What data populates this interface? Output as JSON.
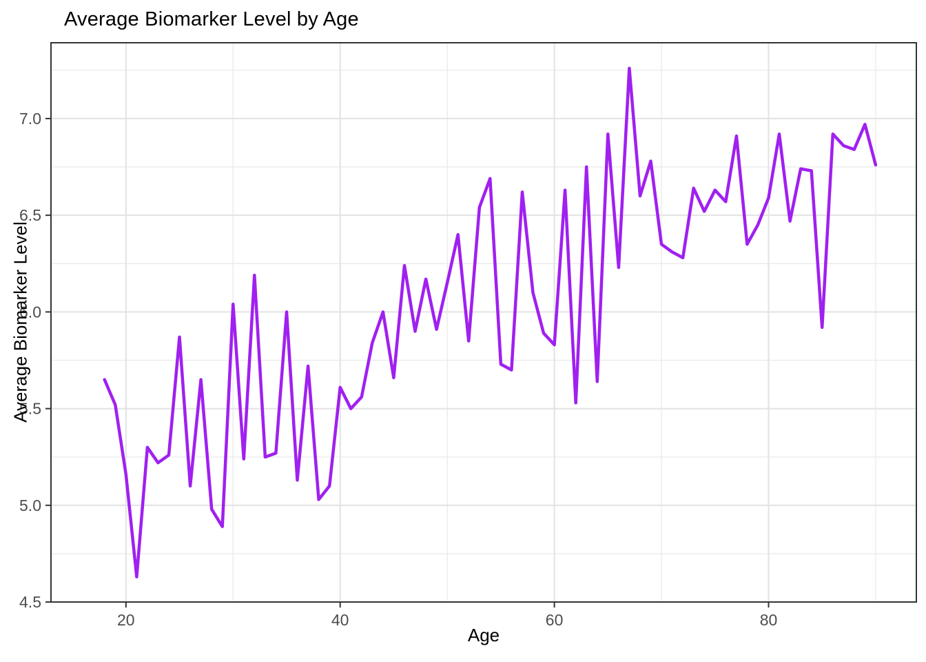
{
  "chart_data": {
    "type": "line",
    "title": "Average Biomarker Level by Age",
    "xlabel": "Age",
    "ylabel": "Average Biomarker Level",
    "xlim": [
      13.0,
      93.8
    ],
    "ylim": [
      4.5,
      7.392
    ],
    "x_major_ticks": [
      20,
      40,
      60,
      80
    ],
    "x_minor_ticks": [
      30,
      50,
      70,
      90
    ],
    "y_major_ticks": [
      4.5,
      5.0,
      5.5,
      6.0,
      6.5,
      7.0
    ],
    "y_minor_ticks": [
      4.75,
      5.25,
      5.75,
      6.25,
      6.75,
      7.25
    ],
    "x_tick_labels": [
      "20",
      "40",
      "60",
      "80"
    ],
    "y_tick_labels": [
      "4.5",
      "5.0",
      "5.5",
      "6.0",
      "6.5",
      "7.0"
    ],
    "grid": "on",
    "legend": "none",
    "line_color": "#A020F0",
    "panel_border_color": "#333333",
    "tick_label_color": "#4D4D4D",
    "major_grid_color": "#E2E2E2",
    "minor_grid_color": "#EBEBEB",
    "series": [
      {
        "name": "Average Biomarker Level",
        "points": [
          [
            18,
            5.65
          ],
          [
            19,
            5.52
          ],
          [
            20,
            5.16
          ],
          [
            21,
            4.63
          ],
          [
            22,
            5.3
          ],
          [
            23,
            5.22
          ],
          [
            24,
            5.26
          ],
          [
            25,
            5.87
          ],
          [
            26,
            5.1
          ],
          [
            27,
            5.65
          ],
          [
            28,
            4.98
          ],
          [
            29,
            4.89
          ],
          [
            30,
            6.04
          ],
          [
            31,
            5.24
          ],
          [
            32,
            6.19
          ],
          [
            33,
            5.25
          ],
          [
            34,
            5.27
          ],
          [
            35,
            6.0
          ],
          [
            36,
            5.13
          ],
          [
            37,
            5.72
          ],
          [
            38,
            5.03
          ],
          [
            39,
            5.1
          ],
          [
            40,
            5.61
          ],
          [
            41,
            5.5
          ],
          [
            42,
            5.56
          ],
          [
            43,
            5.84
          ],
          [
            44,
            6.0
          ],
          [
            45,
            5.66
          ],
          [
            46,
            6.24
          ],
          [
            47,
            5.9
          ],
          [
            48,
            6.17
          ],
          [
            49,
            5.91
          ],
          [
            50,
            6.15
          ],
          [
            51,
            6.4
          ],
          [
            52,
            5.85
          ],
          [
            53,
            6.54
          ],
          [
            54,
            6.69
          ],
          [
            55,
            5.73
          ],
          [
            56,
            5.7
          ],
          [
            57,
            6.62
          ],
          [
            58,
            6.1
          ],
          [
            59,
            5.89
          ],
          [
            60,
            5.83
          ],
          [
            61,
            6.63
          ],
          [
            62,
            5.53
          ],
          [
            63,
            6.75
          ],
          [
            64,
            5.64
          ],
          [
            65,
            6.92
          ],
          [
            66,
            6.23
          ],
          [
            67,
            7.26
          ],
          [
            68,
            6.6
          ],
          [
            69,
            6.78
          ],
          [
            70,
            6.35
          ],
          [
            71,
            6.31
          ],
          [
            72,
            6.28
          ],
          [
            73,
            6.64
          ],
          [
            74,
            6.52
          ],
          [
            75,
            6.63
          ],
          [
            76,
            6.57
          ],
          [
            77,
            6.91
          ],
          [
            78,
            6.35
          ],
          [
            79,
            6.45
          ],
          [
            80,
            6.59
          ],
          [
            81,
            6.92
          ],
          [
            82,
            6.47
          ],
          [
            83,
            6.74
          ],
          [
            84,
            6.73
          ],
          [
            85,
            5.92
          ],
          [
            86,
            6.92
          ],
          [
            87,
            6.86
          ],
          [
            88,
            6.84
          ],
          [
            89,
            6.97
          ],
          [
            90,
            6.76
          ]
        ]
      }
    ]
  }
}
